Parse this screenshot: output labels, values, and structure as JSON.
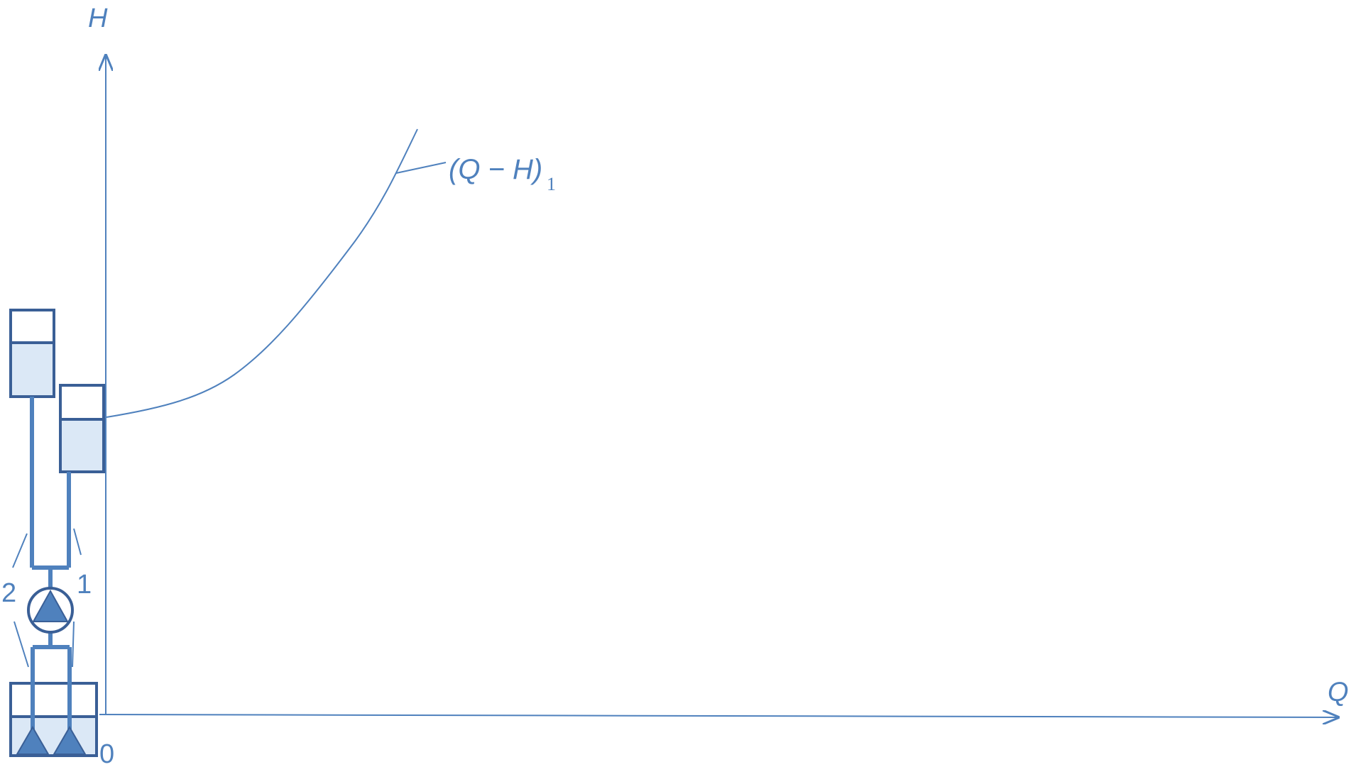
{
  "axes": {
    "y_label": "H",
    "x_label": "Q",
    "origin_label": "0"
  },
  "curve": {
    "label_main": "(Q − H)",
    "label_subscript": "1"
  },
  "schematic": {
    "pipe_label_left": "2",
    "pipe_label_right": "1"
  },
  "colors": {
    "line": "#4f81bd",
    "tank_stroke": "#3a5f96",
    "water": "#dbe8f6",
    "pump_fill": "#4f81bd"
  }
}
